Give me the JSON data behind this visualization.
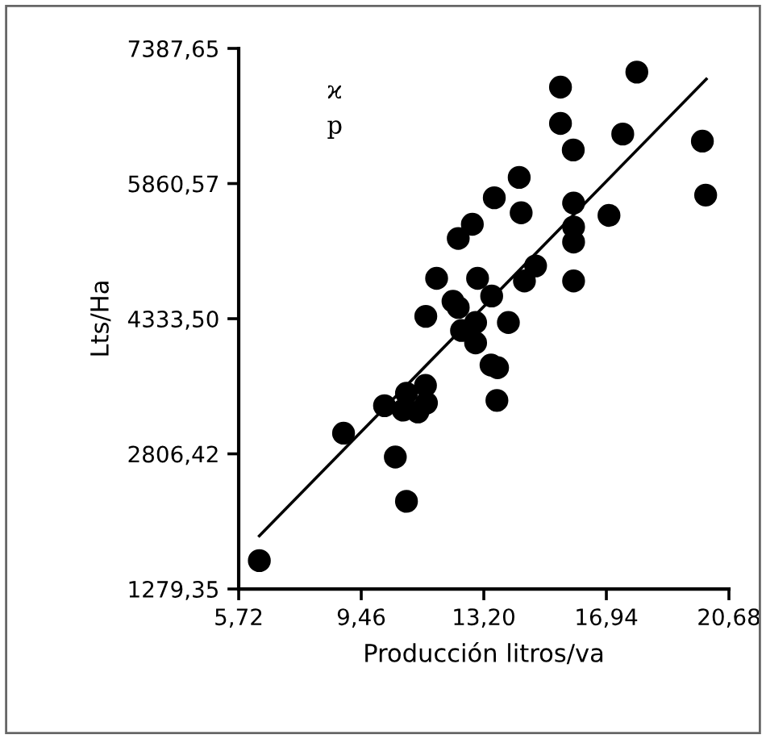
{
  "chart_data": {
    "type": "scatter",
    "xlabel": "Producción litros/va",
    "ylabel": "Lts/Ha",
    "xlim": [
      5.72,
      20.68
    ],
    "ylim": [
      1279.35,
      7387.65
    ],
    "xticks": [
      {
        "value": 5.72,
        "label": "5,72"
      },
      {
        "value": 9.46,
        "label": "9,46"
      },
      {
        "value": 13.2,
        "label": "13,20"
      },
      {
        "value": 16.94,
        "label": "16,94"
      },
      {
        "value": 20.68,
        "label": "20,68"
      }
    ],
    "yticks": [
      {
        "value": 1279.35,
        "label": "1279,35"
      },
      {
        "value": 2806.42,
        "label": "2806,42"
      },
      {
        "value": 4333.5,
        "label": "4333,50"
      },
      {
        "value": 5860.57,
        "label": "5860,57"
      },
      {
        "value": 7387.65,
        "label": "7387,65"
      }
    ],
    "grid": false,
    "annotations": [
      "ϰ",
      "p"
    ],
    "series": [
      {
        "color": "#000000",
        "marker": "circle",
        "x": [
          15.54,
          17.87,
          15.54,
          17.44,
          19.87,
          15.93,
          14.28,
          13.52,
          14.34,
          15.94,
          19.97,
          17.02,
          12.85,
          12.42,
          15.94,
          15.94,
          14.78,
          11.76,
          13.01,
          14.44,
          15.94,
          13.44,
          12.26,
          12.42,
          11.43,
          12.95,
          13.95,
          12.52,
          12.95,
          13.42,
          13.62,
          13.6,
          11.42,
          10.84,
          10.17,
          11.45,
          10.74,
          11.19,
          8.92,
          10.5,
          10.84,
          6.35
        ],
        "values": [
          6950,
          7120,
          6540,
          6420,
          6340,
          6240,
          5930,
          5700,
          5530,
          5640,
          5730,
          5500,
          5400,
          5240,
          5370,
          5200,
          4930,
          4790,
          4790,
          4760,
          4760,
          4590,
          4530,
          4460,
          4360,
          4290,
          4290,
          4200,
          4060,
          3810,
          3780,
          3410,
          3580,
          3490,
          3350,
          3380,
          3300,
          3280,
          3040,
          2770,
          2270,
          1600
        ]
      },
      {
        "type": "line",
        "color": "#000000",
        "x": [
          6.35,
          19.99
        ],
        "values": [
          1880,
          7040
        ]
      }
    ]
  }
}
